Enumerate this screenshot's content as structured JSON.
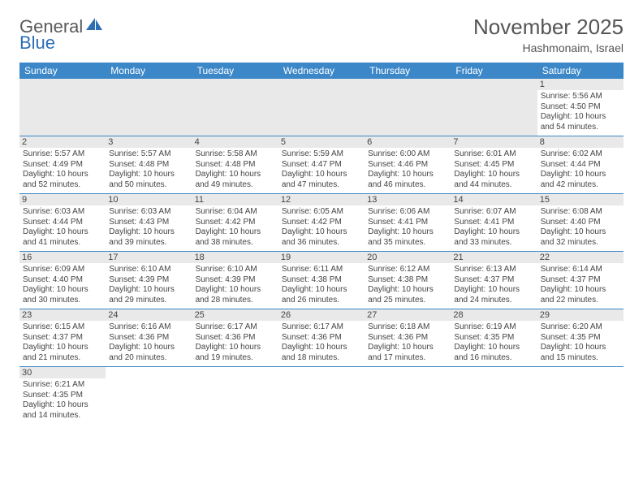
{
  "logo": {
    "word1": "General",
    "word2": "Blue",
    "triangle_color": "#2d6fb5"
  },
  "title": "November 2025",
  "location": "Hashmonaim, Israel",
  "colors": {
    "header_bg": "#3b87c8",
    "header_text": "#ffffff",
    "row_border": "#3b87c8",
    "daynum_bg": "#e9e9e9",
    "text": "#444444",
    "title_color": "#555555"
  },
  "weekdays": [
    "Sunday",
    "Monday",
    "Tuesday",
    "Wednesday",
    "Thursday",
    "Friday",
    "Saturday"
  ],
  "weeks": [
    [
      null,
      null,
      null,
      null,
      null,
      null,
      {
        "n": "1",
        "sunrise": "5:56 AM",
        "sunset": "4:50 PM",
        "daylight": "10 hours and 54 minutes."
      }
    ],
    [
      {
        "n": "2",
        "sunrise": "5:57 AM",
        "sunset": "4:49 PM",
        "daylight": "10 hours and 52 minutes."
      },
      {
        "n": "3",
        "sunrise": "5:57 AM",
        "sunset": "4:48 PM",
        "daylight": "10 hours and 50 minutes."
      },
      {
        "n": "4",
        "sunrise": "5:58 AM",
        "sunset": "4:48 PM",
        "daylight": "10 hours and 49 minutes."
      },
      {
        "n": "5",
        "sunrise": "5:59 AM",
        "sunset": "4:47 PM",
        "daylight": "10 hours and 47 minutes."
      },
      {
        "n": "6",
        "sunrise": "6:00 AM",
        "sunset": "4:46 PM",
        "daylight": "10 hours and 46 minutes."
      },
      {
        "n": "7",
        "sunrise": "6:01 AM",
        "sunset": "4:45 PM",
        "daylight": "10 hours and 44 minutes."
      },
      {
        "n": "8",
        "sunrise": "6:02 AM",
        "sunset": "4:44 PM",
        "daylight": "10 hours and 42 minutes."
      }
    ],
    [
      {
        "n": "9",
        "sunrise": "6:03 AM",
        "sunset": "4:44 PM",
        "daylight": "10 hours and 41 minutes."
      },
      {
        "n": "10",
        "sunrise": "6:03 AM",
        "sunset": "4:43 PM",
        "daylight": "10 hours and 39 minutes."
      },
      {
        "n": "11",
        "sunrise": "6:04 AM",
        "sunset": "4:42 PM",
        "daylight": "10 hours and 38 minutes."
      },
      {
        "n": "12",
        "sunrise": "6:05 AM",
        "sunset": "4:42 PM",
        "daylight": "10 hours and 36 minutes."
      },
      {
        "n": "13",
        "sunrise": "6:06 AM",
        "sunset": "4:41 PM",
        "daylight": "10 hours and 35 minutes."
      },
      {
        "n": "14",
        "sunrise": "6:07 AM",
        "sunset": "4:41 PM",
        "daylight": "10 hours and 33 minutes."
      },
      {
        "n": "15",
        "sunrise": "6:08 AM",
        "sunset": "4:40 PM",
        "daylight": "10 hours and 32 minutes."
      }
    ],
    [
      {
        "n": "16",
        "sunrise": "6:09 AM",
        "sunset": "4:40 PM",
        "daylight": "10 hours and 30 minutes."
      },
      {
        "n": "17",
        "sunrise": "6:10 AM",
        "sunset": "4:39 PM",
        "daylight": "10 hours and 29 minutes."
      },
      {
        "n": "18",
        "sunrise": "6:10 AM",
        "sunset": "4:39 PM",
        "daylight": "10 hours and 28 minutes."
      },
      {
        "n": "19",
        "sunrise": "6:11 AM",
        "sunset": "4:38 PM",
        "daylight": "10 hours and 26 minutes."
      },
      {
        "n": "20",
        "sunrise": "6:12 AM",
        "sunset": "4:38 PM",
        "daylight": "10 hours and 25 minutes."
      },
      {
        "n": "21",
        "sunrise": "6:13 AM",
        "sunset": "4:37 PM",
        "daylight": "10 hours and 24 minutes."
      },
      {
        "n": "22",
        "sunrise": "6:14 AM",
        "sunset": "4:37 PM",
        "daylight": "10 hours and 22 minutes."
      }
    ],
    [
      {
        "n": "23",
        "sunrise": "6:15 AM",
        "sunset": "4:37 PM",
        "daylight": "10 hours and 21 minutes."
      },
      {
        "n": "24",
        "sunrise": "6:16 AM",
        "sunset": "4:36 PM",
        "daylight": "10 hours and 20 minutes."
      },
      {
        "n": "25",
        "sunrise": "6:17 AM",
        "sunset": "4:36 PM",
        "daylight": "10 hours and 19 minutes."
      },
      {
        "n": "26",
        "sunrise": "6:17 AM",
        "sunset": "4:36 PM",
        "daylight": "10 hours and 18 minutes."
      },
      {
        "n": "27",
        "sunrise": "6:18 AM",
        "sunset": "4:36 PM",
        "daylight": "10 hours and 17 minutes."
      },
      {
        "n": "28",
        "sunrise": "6:19 AM",
        "sunset": "4:35 PM",
        "daylight": "10 hours and 16 minutes."
      },
      {
        "n": "29",
        "sunrise": "6:20 AM",
        "sunset": "4:35 PM",
        "daylight": "10 hours and 15 minutes."
      }
    ],
    [
      {
        "n": "30",
        "sunrise": "6:21 AM",
        "sunset": "4:35 PM",
        "daylight": "10 hours and 14 minutes."
      },
      null,
      null,
      null,
      null,
      null,
      null
    ]
  ],
  "labels": {
    "sunrise": "Sunrise:",
    "sunset": "Sunset:",
    "daylight": "Daylight:"
  }
}
